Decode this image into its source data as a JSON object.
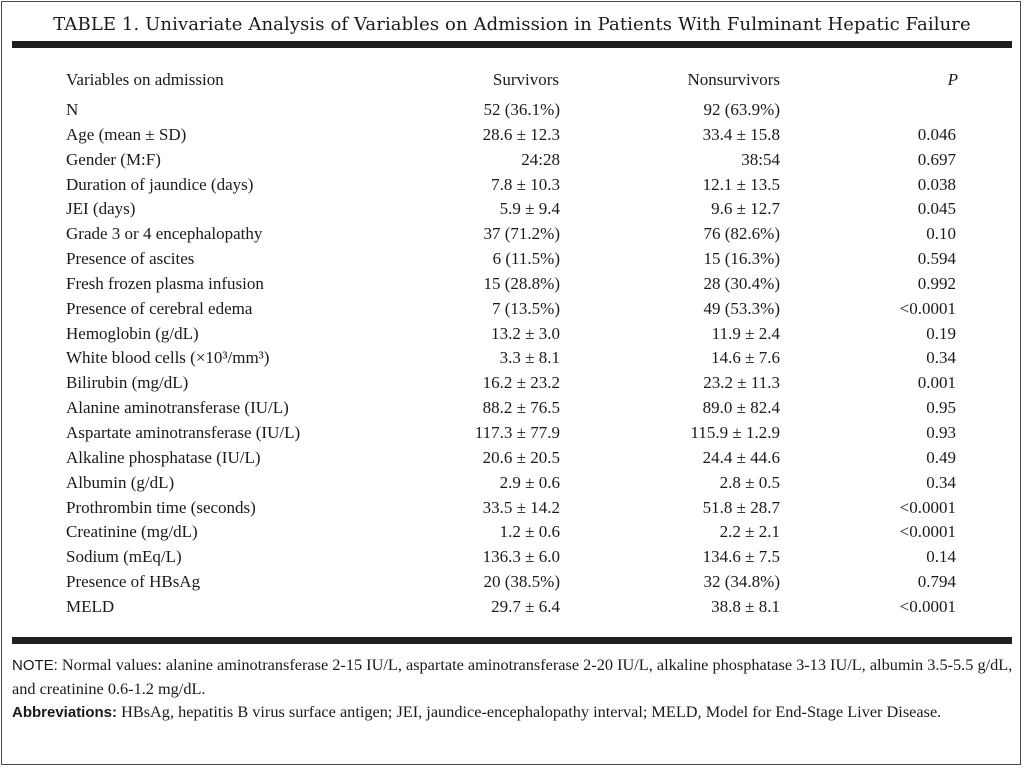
{
  "table": {
    "title": "TABLE 1. Univariate Analysis of Variables on Admission in Patients With Fulminant Hepatic Failure",
    "columns": [
      "Variables on admission",
      "Survivors",
      "Nonsurvivors",
      "P"
    ],
    "rows": [
      {
        "variable": "N",
        "survivors": "52 (36.1%)",
        "nonsurvivors": "92 (63.9%)",
        "p": ""
      },
      {
        "variable": "Age (mean ± SD)",
        "survivors": "28.6 ± 12.3",
        "nonsurvivors": "33.4 ± 15.8",
        "p": "0.046"
      },
      {
        "variable": "Gender (M:F)",
        "survivors": "24:28",
        "nonsurvivors": "38:54",
        "p": "0.697"
      },
      {
        "variable": "Duration of jaundice (days)",
        "survivors": "7.8 ± 10.3",
        "nonsurvivors": "12.1 ± 13.5",
        "p": "0.038"
      },
      {
        "variable": "JEI (days)",
        "survivors": "5.9 ± 9.4",
        "nonsurvivors": "9.6 ± 12.7",
        "p": "0.045"
      },
      {
        "variable": "Grade 3 or 4 encephalopathy",
        "survivors": "37 (71.2%)",
        "nonsurvivors": "76 (82.6%)",
        "p": "0.10"
      },
      {
        "variable": "Presence of ascites",
        "survivors": "6 (11.5%)",
        "nonsurvivors": "15 (16.3%)",
        "p": "0.594"
      },
      {
        "variable": "Fresh frozen plasma infusion",
        "survivors": "15 (28.8%)",
        "nonsurvivors": "28 (30.4%)",
        "p": "0.992"
      },
      {
        "variable": "Presence of cerebral edema",
        "survivors": "7 (13.5%)",
        "nonsurvivors": "49 (53.3%)",
        "p": "<0.0001"
      },
      {
        "variable": "Hemoglobin (g/dL)",
        "survivors": "13.2 ± 3.0",
        "nonsurvivors": "11.9 ± 2.4",
        "p": "0.19"
      },
      {
        "variable": "White blood cells (×10³/mm³)",
        "survivors": "3.3 ± 8.1",
        "nonsurvivors": "14.6 ± 7.6",
        "p": "0.34"
      },
      {
        "variable": "Bilirubin (mg/dL)",
        "survivors": "16.2 ± 23.2",
        "nonsurvivors": "23.2 ± 11.3",
        "p": "0.001"
      },
      {
        "variable": "Alanine aminotransferase (IU/L)",
        "survivors": "88.2 ± 76.5",
        "nonsurvivors": "89.0 ± 82.4",
        "p": "0.95"
      },
      {
        "variable": "Aspartate aminotransferase (IU/L)",
        "survivors": "117.3 ± 77.9",
        "nonsurvivors": "115.9 ± 1.2.9",
        "p": "0.93"
      },
      {
        "variable": "Alkaline phosphatase (IU/L)",
        "survivors": "20.6 ± 20.5",
        "nonsurvivors": "24.4 ± 44.6",
        "p": "0.49"
      },
      {
        "variable": "Albumin (g/dL)",
        "survivors": "2.9 ± 0.6",
        "nonsurvivors": "2.8 ± 0.5",
        "p": "0.34"
      },
      {
        "variable": "Prothrombin time (seconds)",
        "survivors": "33.5 ± 14.2",
        "nonsurvivors": "51.8 ± 28.7",
        "p": "<0.0001"
      },
      {
        "variable": "Creatinine (mg/dL)",
        "survivors": "1.2 ± 0.6",
        "nonsurvivors": "2.2 ± 2.1",
        "p": "<0.0001"
      },
      {
        "variable": "Sodium (mEq/L)",
        "survivors": "136.3 ± 6.0",
        "nonsurvivors": "134.6 ± 7.5",
        "p": "0.14"
      },
      {
        "variable": "Presence of HBsAg",
        "survivors": "20 (38.5%)",
        "nonsurvivors": "32 (34.8%)",
        "p": "0.794"
      },
      {
        "variable": "MELD",
        "survivors": "29.7 ± 6.4",
        "nonsurvivors": "38.8 ± 8.1",
        "p": "<0.0001"
      }
    ]
  },
  "notes": {
    "note_label": "NOTE:",
    "note_text": "Normal values: alanine aminotransferase 2-15 IU/L, aspartate aminotransferase 2-20 IU/L, alkaline phosphatase 3-13 IU/L, albumin 3.5-5.5 g/dL, and creatinine 0.6-1.2 mg/dL.",
    "abbrev_label": "Abbreviations:",
    "abbrev_text": "HBsAg, hepatitis B virus surface antigen; JEI, jaundice-encephalopathy interval; MELD, Model for End-Stage Liver Disease."
  }
}
